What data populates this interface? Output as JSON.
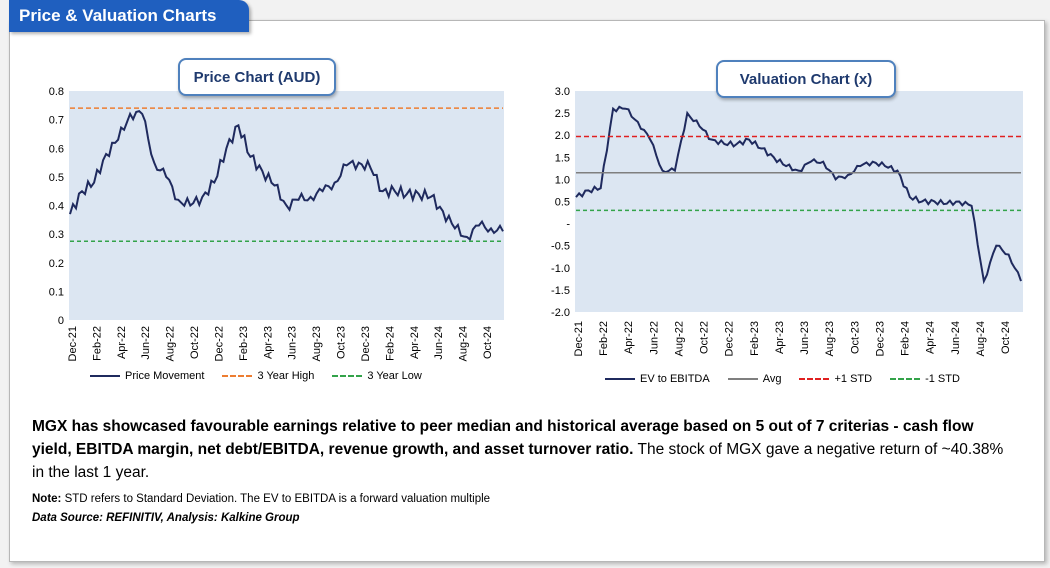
{
  "header": {
    "title": "Price & Valuation Charts"
  },
  "price_chart": {
    "title_box": "Price Chart (AUD)",
    "legend": [
      {
        "label": "Price Movement",
        "color": "#1f2a5e",
        "style": "solid"
      },
      {
        "label": "3 Year High",
        "color": "#ed7d31",
        "style": "dash"
      },
      {
        "label": "3 Year Low",
        "color": "#33a34a",
        "style": "dash"
      }
    ],
    "y_ticks": [
      "0",
      "0.1",
      "0.2",
      "0.3",
      "0.4",
      "0.5",
      "0.6",
      "0.7",
      "0.8"
    ],
    "x_ticks": [
      "Dec-21",
      "Feb-22",
      "Apr-22",
      "Jun-22",
      "Aug-22",
      "Oct-22",
      "Dec-22",
      "Feb-23",
      "Apr-23",
      "Jun-23",
      "Aug-23",
      "Oct-23",
      "Dec-23",
      "Feb-24",
      "Apr-24",
      "Jun-24",
      "Aug-24",
      "Oct-24"
    ]
  },
  "valuation_chart": {
    "title_box": "Valuation Chart (x)",
    "legend": [
      {
        "label": "EV to EBITDA",
        "color": "#1f2a5e",
        "style": "solid"
      },
      {
        "label": "Avg",
        "color": "#7f7f7f",
        "style": "solid"
      },
      {
        "label": "+1 STD",
        "color": "#e02020",
        "style": "dash"
      },
      {
        "label": "-1 STD",
        "color": "#33a34a",
        "style": "dash"
      }
    ],
    "y_ticks": [
      "3.0",
      "2.5",
      "2.0",
      "1.5",
      "1.0",
      "0.5",
      "-",
      "-0.5",
      "-1.0",
      "-1.5",
      "-2.0"
    ],
    "x_ticks": [
      "Dec-21",
      "Feb-22",
      "Apr-22",
      "Jun-22",
      "Aug-22",
      "Oct-22",
      "Dec-22",
      "Feb-23",
      "Apr-23",
      "Jun-23",
      "Aug-23",
      "Oct-23",
      "Dec-23",
      "Feb-24",
      "Apr-24",
      "Jun-24",
      "Aug-24",
      "Oct-24"
    ]
  },
  "chart_data": [
    {
      "type": "line",
      "title": "Price Chart (AUD)",
      "xlabel": "",
      "ylabel": "",
      "ylim": [
        0,
        0.8
      ],
      "x": [
        "Dec-21",
        "Jan-22",
        "Feb-22",
        "Mar-22",
        "Apr-22",
        "May-22",
        "Jun-22",
        "Jul-22",
        "Aug-22",
        "Sep-22",
        "Oct-22",
        "Nov-22",
        "Dec-22",
        "Jan-23",
        "Feb-23",
        "Mar-23",
        "Apr-23",
        "May-23",
        "Jun-23",
        "Jul-23",
        "Aug-23",
        "Sep-23",
        "Oct-23",
        "Nov-23",
        "Dec-23",
        "Jan-24",
        "Feb-24",
        "Mar-24",
        "Apr-24",
        "May-24",
        "Jun-24",
        "Jul-24",
        "Aug-24",
        "Sep-24",
        "Oct-24",
        "Nov-24",
        "Dec-24"
      ],
      "series": [
        {
          "name": "Price Movement",
          "values": [
            0.37,
            0.45,
            0.48,
            0.58,
            0.63,
            0.72,
            0.72,
            0.55,
            0.5,
            0.42,
            0.4,
            0.43,
            0.48,
            0.6,
            0.68,
            0.57,
            0.52,
            0.47,
            0.4,
            0.42,
            0.43,
            0.45,
            0.48,
            0.54,
            0.55,
            0.53,
            0.45,
            0.45,
            0.44,
            0.44,
            0.43,
            0.38,
            0.32,
            0.29,
            0.33,
            0.32,
            0.31
          ]
        },
        {
          "name": "3 Year High",
          "values": [
            0.74,
            0.74,
            0.74,
            0.74,
            0.74,
            0.74,
            0.74,
            0.74,
            0.74,
            0.74,
            0.74,
            0.74,
            0.74,
            0.74,
            0.74,
            0.74,
            0.74,
            0.74,
            0.74,
            0.74,
            0.74,
            0.74,
            0.74,
            0.74,
            0.74,
            0.74,
            0.74,
            0.74,
            0.74,
            0.74,
            0.74,
            0.74,
            0.74,
            0.74,
            0.74,
            0.74,
            0.74
          ]
        },
        {
          "name": "3 Year Low",
          "values": [
            0.275,
            0.275,
            0.275,
            0.275,
            0.275,
            0.275,
            0.275,
            0.275,
            0.275,
            0.275,
            0.275,
            0.275,
            0.275,
            0.275,
            0.275,
            0.275,
            0.275,
            0.275,
            0.275,
            0.275,
            0.275,
            0.275,
            0.275,
            0.275,
            0.275,
            0.275,
            0.275,
            0.275,
            0.275,
            0.275,
            0.275,
            0.275,
            0.275,
            0.275,
            0.275,
            0.275,
            0.275
          ]
        }
      ],
      "legend": "bottom",
      "grid": false
    },
    {
      "type": "line",
      "title": "Valuation Chart (x)",
      "xlabel": "",
      "ylabel": "",
      "ylim": [
        -2.0,
        3.0
      ],
      "x": [
        "Dec-21",
        "Jan-22",
        "Feb-22",
        "Mar-22",
        "Apr-22",
        "May-22",
        "Jun-22",
        "Jul-22",
        "Aug-22",
        "Sep-22",
        "Oct-22",
        "Nov-22",
        "Dec-22",
        "Jan-23",
        "Feb-23",
        "Mar-23",
        "Apr-23",
        "May-23",
        "Jun-23",
        "Jul-23",
        "Aug-23",
        "Sep-23",
        "Oct-23",
        "Nov-23",
        "Dec-23",
        "Jan-24",
        "Feb-24",
        "Mar-24",
        "Apr-24",
        "May-24",
        "Jun-24",
        "Jul-24",
        "Aug-24",
        "Sep-24",
        "Oct-24",
        "Nov-24",
        "Dec-24"
      ],
      "series": [
        {
          "name": "EV to EBITDA",
          "values": [
            0.6,
            0.75,
            0.8,
            2.6,
            2.6,
            2.3,
            1.9,
            1.2,
            1.2,
            2.5,
            2.2,
            1.9,
            1.8,
            1.8,
            1.9,
            1.7,
            1.5,
            1.3,
            1.2,
            1.4,
            1.4,
            1.0,
            1.1,
            1.3,
            1.4,
            1.3,
            1.2,
            0.6,
            0.5,
            0.5,
            0.45,
            0.5,
            0.4,
            -1.3,
            -0.5,
            -0.7,
            -1.3
          ]
        },
        {
          "name": "Avg",
          "values": [
            1.15,
            1.15,
            1.15,
            1.15,
            1.15,
            1.15,
            1.15,
            1.15,
            1.15,
            1.15,
            1.15,
            1.15,
            1.15,
            1.15,
            1.15,
            1.15,
            1.15,
            1.15,
            1.15,
            1.15,
            1.15,
            1.15,
            1.15,
            1.15,
            1.15,
            1.15,
            1.15,
            1.15,
            1.15,
            1.15,
            1.15,
            1.15,
            1.15,
            1.15,
            1.15,
            1.15,
            1.15
          ]
        },
        {
          "name": "+1 STD",
          "values": [
            1.97,
            1.97,
            1.97,
            1.97,
            1.97,
            1.97,
            1.97,
            1.97,
            1.97,
            1.97,
            1.97,
            1.97,
            1.97,
            1.97,
            1.97,
            1.97,
            1.97,
            1.97,
            1.97,
            1.97,
            1.97,
            1.97,
            1.97,
            1.97,
            1.97,
            1.97,
            1.97,
            1.97,
            1.97,
            1.97,
            1.97,
            1.97,
            1.97,
            1.97,
            1.97,
            1.97,
            1.97
          ]
        },
        {
          "name": "-1 STD",
          "values": [
            0.3,
            0.3,
            0.3,
            0.3,
            0.3,
            0.3,
            0.3,
            0.3,
            0.3,
            0.3,
            0.3,
            0.3,
            0.3,
            0.3,
            0.3,
            0.3,
            0.3,
            0.3,
            0.3,
            0.3,
            0.3,
            0.3,
            0.3,
            0.3,
            0.3,
            0.3,
            0.3,
            0.3,
            0.3,
            0.3,
            0.3,
            0.3,
            0.3,
            0.3,
            0.3,
            0.3,
            0.3
          ]
        }
      ],
      "legend": "bottom",
      "grid": false
    }
  ],
  "summary": {
    "bold": "MGX has showcased favourable earnings relative to peer median and historical average based on 5 out of 7 criterias - cash flow yield, EBITDA margin, net debt/EBITDA, revenue growth, and asset turnover ratio.",
    "normal": " The stock of MGX gave a negative return of ~40.38% in the last 1 year."
  },
  "note": {
    "label": "Note:",
    "text": " STD refers to Standard Deviation. The EV to EBITDA is a forward valuation multiple"
  },
  "source": {
    "text": "Data Source: REFINITIV, Analysis: Kalkine Group"
  }
}
